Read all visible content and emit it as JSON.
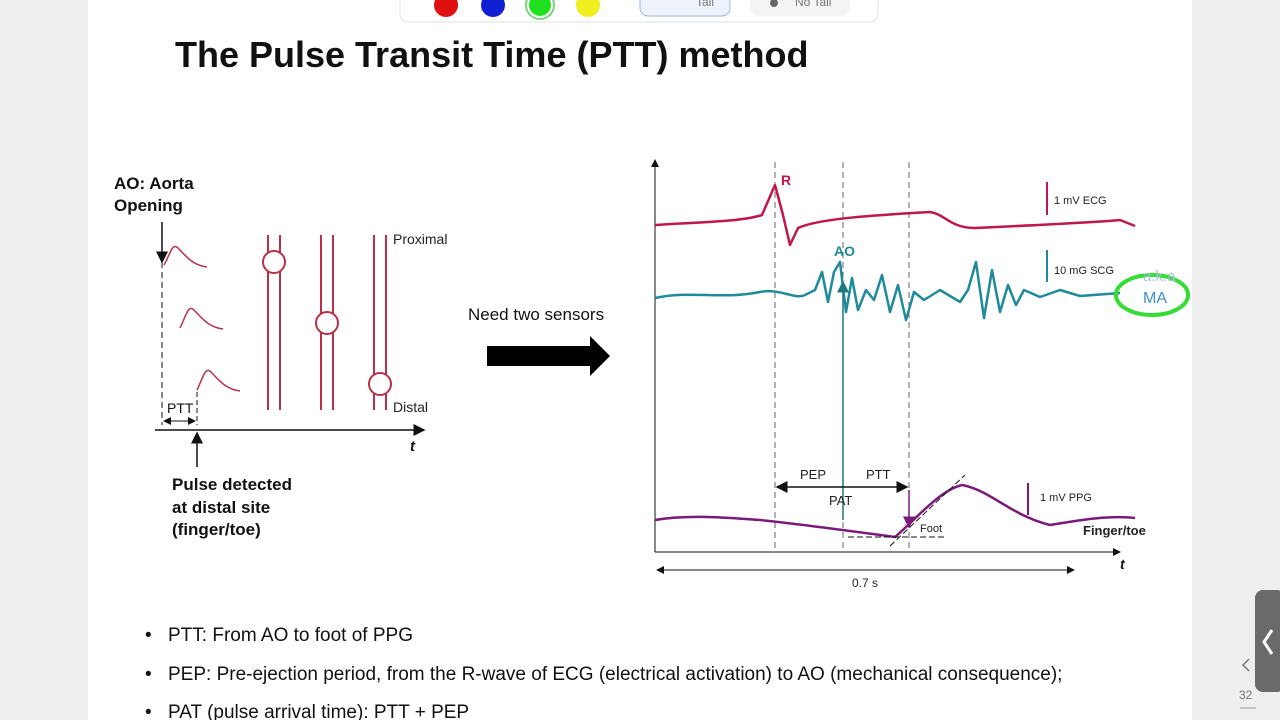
{
  "toolbar": {
    "tail": "Tail",
    "no_tail": "No Tail"
  },
  "slide": {
    "title": "The Pulse Transit Time (PTT) method",
    "left_diagram": {
      "ao_label": [
        "AO: Aorta",
        "Opening"
      ],
      "proximal": "Proximal",
      "distal": "Distal",
      "ptt": "PTT",
      "axis": "t",
      "pulse_label": [
        "Pulse detected",
        "at distal site",
        "(finger/toe)"
      ]
    },
    "arrow_label": "Need two sensors",
    "right_diagram": {
      "r": "R",
      "ecg_scale": "1 mV ECG",
      "ao": "AO",
      "scg_scale": "10 mG SCG",
      "annotation": [
        "a.k.a",
        "MA"
      ],
      "pep": "PEP",
      "ptt": "PTT",
      "pat": "PAT",
      "foot": "Foot",
      "ppg_scale": "1 mV PPG",
      "site": "Finger/toe",
      "axis": "t",
      "duration": "0.7 s"
    },
    "bullets": [
      "PTT: From AO to foot of PPG",
      "PEP: Pre-ejection period, from the R-wave of ECG (electrical activation) to AO (mechanical consequence);",
      "PAT (pulse arrival time): PTT + PEP"
    ]
  },
  "page_number": "32"
}
